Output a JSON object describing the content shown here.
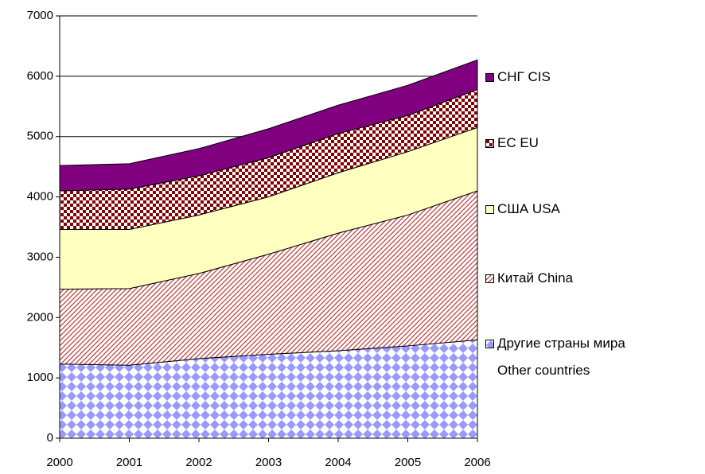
{
  "chart_data": {
    "type": "stacked_area",
    "x": [
      2000,
      2001,
      2002,
      2003,
      2004,
      2005,
      2006
    ],
    "xlim": [
      2000,
      2006
    ],
    "xticks": [
      2000,
      2001,
      2002,
      2003,
      2004,
      2005,
      2006
    ],
    "ylim": [
      0,
      7000
    ],
    "yticks": [
      0,
      1000,
      2000,
      3000,
      4000,
      5000,
      6000,
      7000
    ],
    "grid": true,
    "legend": "right",
    "series": [
      {
        "name": "Другие страны мира\nOther countries",
        "color": "#9999ff",
        "pattern": "diamond",
        "values": [
          1230,
          1210,
          1320,
          1390,
          1450,
          1530,
          1630
        ]
      },
      {
        "name": "Китай China",
        "color": "#c04040",
        "pattern": "hatch",
        "values": [
          1240,
          1270,
          1410,
          1660,
          1950,
          2170,
          2470
        ]
      },
      {
        "name": "США USA",
        "color": "#ffffc0",
        "pattern": "solid",
        "values": [
          990,
          980,
          970,
          950,
          1000,
          1050,
          1050
        ]
      },
      {
        "name": "ЕС EU",
        "color": "#800000",
        "pattern": "check",
        "values": [
          640,
          670,
          650,
          650,
          650,
          600,
          630
        ]
      },
      {
        "name": "СНГ CIS",
        "color": "#800080",
        "pattern": "solid",
        "values": [
          420,
          420,
          450,
          480,
          470,
          500,
          490
        ]
      }
    ]
  }
}
